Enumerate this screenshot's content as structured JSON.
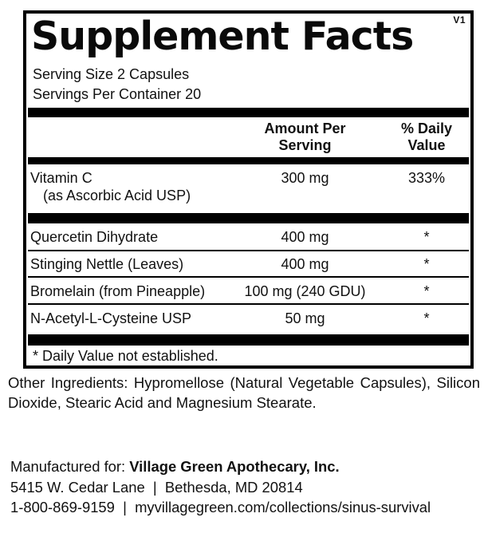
{
  "panel": {
    "version": "V1",
    "title": "Supplement Facts",
    "serving_size": "Serving Size 2 Capsules",
    "servings_per_container": "Servings Per Container 20",
    "columns": {
      "amount_line1": "Amount Per",
      "amount_line2": "Serving",
      "dv_line1": "% Daily",
      "dv_line2": "Value"
    },
    "footnote": "* Daily Value not established."
  },
  "nutrients": [
    {
      "name": "Vitamin C",
      "name_detail": "(as Ascorbic Acid USP)",
      "amount": "300 mg",
      "daily_value": "333%"
    },
    {
      "name": "Quercetin Dihydrate",
      "amount": "400 mg",
      "daily_value": "*"
    },
    {
      "name": "Stinging Nettle (Leaves)",
      "amount": "400 mg",
      "daily_value": "*"
    },
    {
      "name": "Bromelain (from Pineapple)",
      "amount": "100 mg (240 GDU)",
      "daily_value": "*"
    },
    {
      "name": "N-Acetyl-L-Cysteine USP",
      "amount": "50 mg",
      "daily_value": "*"
    }
  ],
  "other_ingredients": {
    "line1": "Other Ingredients: Hypromellose (Natural Vegetable Capsules), Silicon",
    "line2": "Dioxide, Stearic Acid and Magnesium Stearate."
  },
  "footer": {
    "manufactured_prefix": "Manufactured for: ",
    "manufactured_name": "Village Green Apothecary, Inc.",
    "address_line": "5415 W. Cedar Lane  |  Bethesda, MD 20814",
    "contact_line": "1-800-869-9159  |  myvillagegreen.com/collections/sinus-survival"
  },
  "colors": {
    "ink": "#111111",
    "rule": "#000000",
    "background": "#ffffff"
  }
}
